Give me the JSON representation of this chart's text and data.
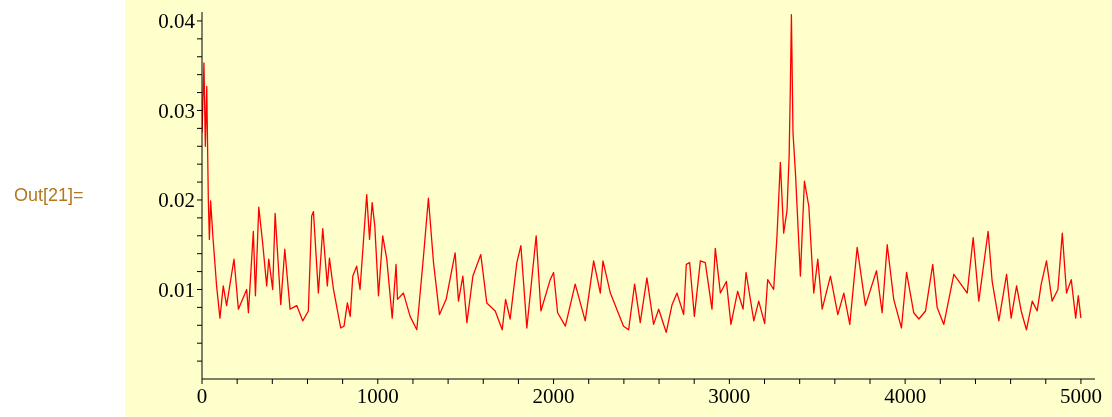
{
  "chart_data": {
    "type": "line",
    "annotations": [
      "Out[21]="
    ],
    "x": [
      0,
      11,
      19,
      27,
      36,
      42,
      49,
      61,
      83,
      102,
      121,
      140,
      182,
      207,
      254,
      264,
      292,
      304,
      323,
      345,
      368,
      380,
      402,
      416,
      448,
      471,
      501,
      539,
      573,
      605,
      624,
      634,
      662,
      687,
      713,
      725,
      748,
      789,
      808,
      827,
      843,
      858,
      880,
      899,
      937,
      953,
      968,
      983,
      1004,
      1028,
      1051,
      1082,
      1104,
      1112,
      1146,
      1184,
      1222,
      1260,
      1288,
      1317,
      1351,
      1389,
      1440,
      1459,
      1484,
      1507,
      1541,
      1586,
      1620,
      1668,
      1708,
      1727,
      1753,
      1791,
      1814,
      1848,
      1901,
      1928,
      1981,
      2000,
      2023,
      2067,
      2123,
      2180,
      2228,
      2266,
      2281,
      2323,
      2398,
      2427,
      2461,
      2493,
      2531,
      2569,
      2598,
      2641,
      2674,
      2702,
      2740,
      2755,
      2774,
      2801,
      2835,
      2863,
      2901,
      2920,
      2949,
      2983,
      3009,
      3047,
      3078,
      3095,
      3139,
      3167,
      3201,
      3218,
      3252,
      3271,
      3290,
      3309,
      3328,
      3340,
      3347,
      3353,
      3362,
      3376,
      3404,
      3427,
      3452,
      3480,
      3503,
      3528,
      3575,
      3617,
      3651,
      3685,
      3727,
      3774,
      3837,
      3869,
      3898,
      3935,
      3979,
      4008,
      4049,
      4078,
      4116,
      4157,
      4182,
      4220,
      4277,
      4324,
      4353,
      4387,
      4419,
      4472,
      4495,
      4533,
      4577,
      4603,
      4634,
      4660,
      4690,
      4723,
      4751,
      4774,
      4804,
      4836,
      4869,
      4894,
      4918,
      4945,
      4970,
      4985,
      5000
    ],
    "series": [
      {
        "color": "#ff0000",
        "values": [
          0.0275,
          0.0353,
          0.026,
          0.0327,
          0.02,
          0.0156,
          0.0199,
          0.0162,
          0.0104,
          0.0068,
          0.0104,
          0.0082,
          0.0134,
          0.0078,
          0.01,
          0.0074,
          0.0165,
          0.0093,
          0.0192,
          0.0152,
          0.0104,
          0.0134,
          0.01,
          0.0185,
          0.0083,
          0.0145,
          0.0078,
          0.0082,
          0.0065,
          0.0076,
          0.0182,
          0.0187,
          0.0096,
          0.0168,
          0.0104,
          0.0135,
          0.01,
          0.0057,
          0.0059,
          0.0085,
          0.007,
          0.0115,
          0.0126,
          0.01,
          0.0206,
          0.0156,
          0.0197,
          0.0171,
          0.0093,
          0.016,
          0.0134,
          0.0068,
          0.0128,
          0.0089,
          0.0096,
          0.007,
          0.0055,
          0.0137,
          0.0202,
          0.013,
          0.0072,
          0.0089,
          0.0141,
          0.0087,
          0.0115,
          0.0063,
          0.0115,
          0.0139,
          0.0085,
          0.0076,
          0.0055,
          0.0089,
          0.0067,
          0.013,
          0.0149,
          0.0057,
          0.016,
          0.0076,
          0.0111,
          0.0119,
          0.0074,
          0.0059,
          0.0106,
          0.0065,
          0.0132,
          0.0096,
          0.0132,
          0.0096,
          0.0059,
          0.0055,
          0.0106,
          0.0063,
          0.0113,
          0.0061,
          0.0078,
          0.0052,
          0.0083,
          0.0096,
          0.0072,
          0.0128,
          0.013,
          0.007,
          0.0132,
          0.013,
          0.0078,
          0.0146,
          0.0096,
          0.0109,
          0.0061,
          0.0098,
          0.0078,
          0.0119,
          0.0065,
          0.0087,
          0.0062,
          0.0111,
          0.01,
          0.016,
          0.0242,
          0.0163,
          0.0188,
          0.0249,
          0.0327,
          0.0407,
          0.0275,
          0.023,
          0.0115,
          0.0221,
          0.0193,
          0.0096,
          0.0134,
          0.0078,
          0.0115,
          0.0072,
          0.0096,
          0.0061,
          0.0147,
          0.0082,
          0.0121,
          0.0074,
          0.015,
          0.0089,
          0.0057,
          0.0119,
          0.0074,
          0.0067,
          0.0076,
          0.0128,
          0.008,
          0.0061,
          0.0117,
          0.0104,
          0.0096,
          0.0158,
          0.0087,
          0.0165,
          0.0109,
          0.0065,
          0.0117,
          0.0068,
          0.0104,
          0.0076,
          0.0055,
          0.0087,
          0.0076,
          0.0106,
          0.0132,
          0.0087,
          0.01,
          0.0163,
          0.0096,
          0.0111,
          0.0068,
          0.0093,
          0.0068
        ]
      }
    ],
    "xlim": [
      0,
      5080
    ],
    "xticks": [
      0,
      {
        "value": 200,
        "label": null
      },
      {
        "value": 400,
        "label": null
      },
      {
        "value": 600,
        "label": null
      },
      {
        "value": 800,
        "label": null
      },
      1000,
      {
        "value": 1200,
        "label": null
      },
      {
        "value": 1400,
        "label": null
      },
      {
        "value": 1600,
        "label": null
      },
      {
        "value": 1800,
        "label": null
      },
      2000,
      {
        "value": 2200,
        "label": null
      },
      {
        "value": 2400,
        "label": null
      },
      {
        "value": 2600,
        "label": null
      },
      {
        "value": 2800,
        "label": null
      },
      3000,
      {
        "value": 3200,
        "label": null
      },
      {
        "value": 3400,
        "label": null
      },
      {
        "value": 3600,
        "label": null
      },
      {
        "value": 3800,
        "label": null
      },
      4000,
      {
        "value": 4200,
        "label": null
      },
      {
        "value": 4400,
        "label": null
      },
      {
        "value": 4600,
        "label": null
      },
      {
        "value": 4800,
        "label": null
      },
      5000
    ],
    "ylim": [
      0,
      0.041
    ],
    "yticks": [
      {
        "value": 0.002,
        "label": null
      },
      {
        "value": 0.004,
        "label": null
      },
      {
        "value": 0.006,
        "label": null
      },
      {
        "value": 0.008,
        "label": null
      },
      0.01,
      {
        "value": 0.012,
        "label": null
      },
      {
        "value": 0.014,
        "label": null
      },
      {
        "value": 0.016,
        "label": null
      },
      {
        "value": 0.018,
        "label": null
      },
      0.02,
      {
        "value": 0.022,
        "label": null
      },
      {
        "value": 0.024,
        "label": null
      },
      {
        "value": 0.026,
        "label": null
      },
      {
        "value": 0.028,
        "label": null
      },
      0.03,
      {
        "value": 0.032,
        "label": null
      },
      {
        "value": 0.034,
        "label": null
      },
      {
        "value": 0.036,
        "label": null
      },
      {
        "value": 0.038,
        "label": null
      },
      0.04
    ],
    "grid": false,
    "legend": false,
    "marker": "none",
    "line_style": "solid"
  }
}
